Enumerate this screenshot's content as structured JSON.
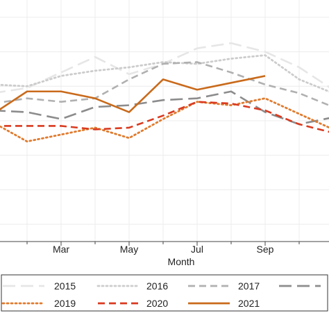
{
  "chart_data": {
    "type": "line",
    "xlabel": "Month",
    "x_ticks": [
      {
        "x": 3,
        "label": "Mar"
      },
      {
        "x": 5,
        "label": "May"
      },
      {
        "x": 7,
        "label": "Jul"
      },
      {
        "x": 9,
        "label": "Sep"
      },
      {
        "x": 11,
        "label": "N"
      }
    ],
    "x": [
      1,
      2,
      3,
      4,
      5,
      6,
      7,
      8,
      9,
      10,
      11,
      12
    ],
    "ylim": [
      0,
      28
    ],
    "grid": true,
    "legend_position": "bottom",
    "series": [
      {
        "name": "2015",
        "color": "#e6e6e6",
        "style": "dash-long",
        "x": [
          1,
          2,
          3,
          4,
          5,
          6,
          7,
          8,
          9,
          10,
          11,
          12
        ],
        "values": [
          17.2,
          17.8,
          19.6,
          21.4,
          19.4,
          20.6,
          22.4,
          23.0,
          22.0,
          20.2,
          17.6,
          16.2
        ]
      },
      {
        "name": "2016",
        "color": "#cccccc",
        "style": "dot",
        "x": [
          1,
          2,
          3,
          4,
          5,
          6,
          7,
          8,
          9,
          10,
          11,
          12
        ],
        "values": [
          18.2,
          18.0,
          19.2,
          19.8,
          20.2,
          20.8,
          20.6,
          21.2,
          21.6,
          18.8,
          17.2,
          17.0
        ]
      },
      {
        "name": "2017",
        "color": "#b0b0b0",
        "style": "dash",
        "x": [
          1,
          2,
          3,
          4,
          5,
          6,
          7,
          8,
          9,
          10,
          11,
          12
        ],
        "values": [
          16.0,
          16.6,
          16.2,
          16.6,
          18.8,
          20.6,
          20.8,
          19.6,
          18.2,
          17.2,
          15.6,
          14.2
        ]
      },
      {
        "name": "",
        "color": "#8c8c8c",
        "style": "dash-long",
        "x": [
          1,
          2,
          3,
          4,
          5,
          6,
          7,
          8,
          9,
          10,
          11,
          12
        ],
        "values": [
          15.2,
          15.0,
          14.2,
          15.6,
          15.8,
          16.4,
          16.6,
          17.4,
          15.0,
          13.6,
          14.4,
          13.2
        ]
      },
      {
        "name": "2019",
        "color": "#e07b2e",
        "style": "dot",
        "x": [
          1,
          2,
          3,
          4,
          5,
          6,
          7,
          8,
          9,
          10,
          11,
          12
        ],
        "values": [
          13.8,
          11.6,
          12.4,
          13.2,
          12.0,
          14.2,
          16.2,
          15.8,
          16.6,
          14.8,
          13.0,
          13.0
        ]
      },
      {
        "name": "2020",
        "color": "#d93a1f",
        "style": "dash",
        "x": [
          1,
          2,
          3,
          4,
          5,
          6,
          7,
          8,
          9,
          10,
          11,
          12
        ],
        "values": [
          13.4,
          13.4,
          13.4,
          13.0,
          13.2,
          14.6,
          16.2,
          16.0,
          15.2,
          13.6,
          12.6,
          12.4
        ]
      },
      {
        "name": "2021",
        "color": "#c96a1b",
        "style": "solid",
        "x": [
          1,
          2,
          3,
          4,
          5,
          6,
          7,
          8,
          9
        ],
        "values": [
          14.8,
          17.4,
          17.4,
          16.6,
          15.0,
          18.8,
          17.6,
          18.4,
          19.2
        ]
      }
    ]
  }
}
